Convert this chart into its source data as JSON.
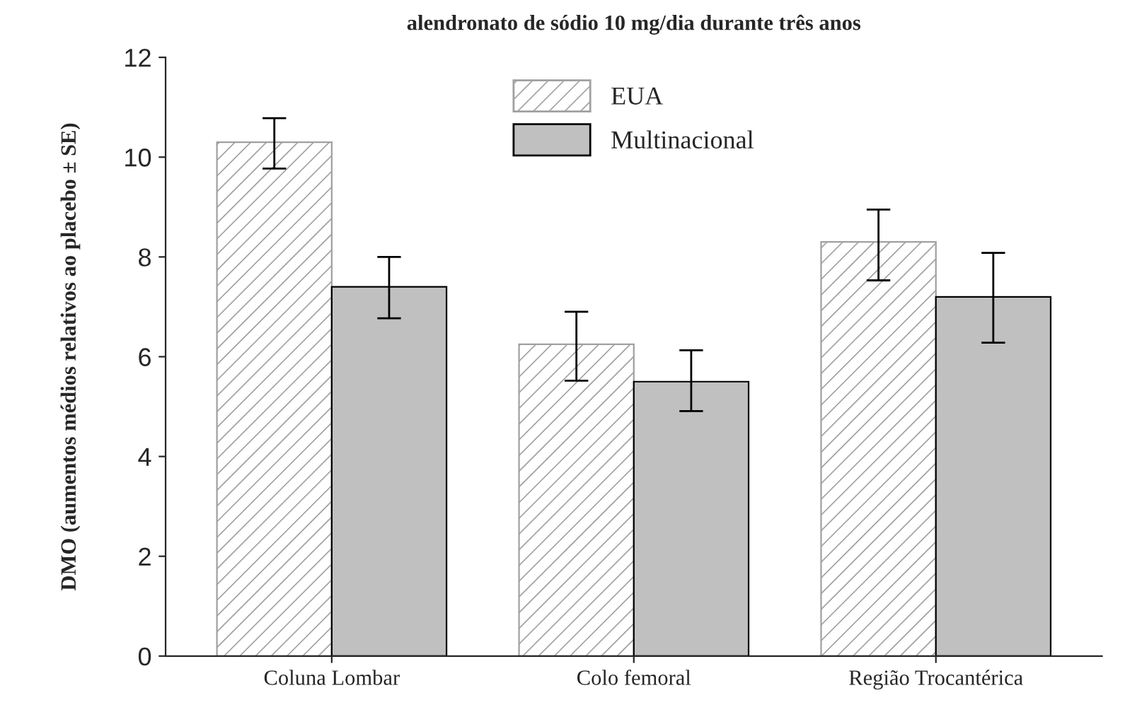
{
  "chart_data": {
    "type": "bar",
    "title": "alendronato de sódio 10 mg/dia durante três anos",
    "ylabel": "DMO (aumentos médios relativos ao placebo ± SE)",
    "categories": [
      "Coluna Lombar",
      "Colo femoral",
      "Região Trocantérica"
    ],
    "series": [
      {
        "name": "EUA",
        "color": "#a0a0a0",
        "values": [
          10.3,
          6.25,
          8.3
        ],
        "errors": [
          [
            9.77,
            10.78
          ],
          [
            5.52,
            6.9
          ],
          [
            7.53,
            8.95
          ]
        ]
      },
      {
        "name": "Multinacional",
        "color": "#c0c0c0",
        "values": [
          7.4,
          5.5,
          7.2
        ],
        "errors": [
          [
            6.77,
            8.0
          ],
          [
            4.91,
            6.13
          ],
          [
            6.28,
            8.08
          ]
        ]
      }
    ],
    "ylim": [
      0,
      12
    ],
    "yticks": [
      0,
      2,
      4,
      6,
      8,
      10,
      12
    ],
    "grid": false,
    "legend": "top"
  }
}
